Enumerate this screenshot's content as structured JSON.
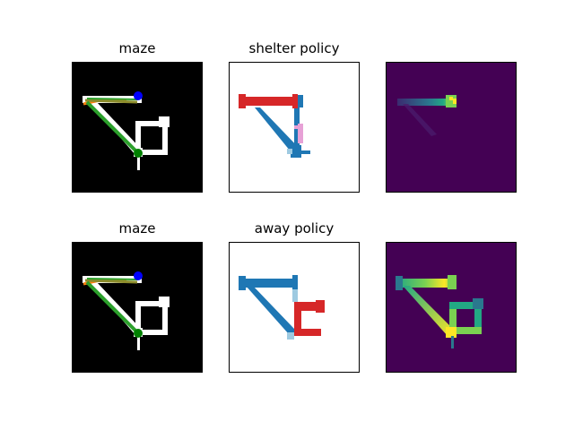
{
  "figure": {
    "rows": [
      {
        "panels": [
          {
            "title": "maze",
            "kind": "maze"
          },
          {
            "title": "shelter policy",
            "kind": "policy-shelter"
          },
          {
            "title": "",
            "kind": "heat-shelter"
          }
        ]
      },
      {
        "panels": [
          {
            "title": "maze",
            "kind": "maze"
          },
          {
            "title": "away policy",
            "kind": "policy-away"
          },
          {
            "title": "",
            "kind": "heat-away"
          }
        ]
      }
    ]
  },
  "colors": {
    "maze_background": "#000000",
    "maze_path": "#ffffff",
    "policy_background": "#ffffff",
    "policy_blue": "#1f77b4",
    "policy_red": "#d62728",
    "policy_pink": "#e7a1d6",
    "policy_lightblue": "#9ecae1",
    "heat_background": "#440154",
    "heat_dark": "#3b2a70",
    "heat_mid": "#2a788e",
    "heat_green": "#22a884",
    "heat_lime": "#7ad151",
    "heat_yellow": "#fde725",
    "start_marker": "#0000ff",
    "goal_marker": "#008000",
    "trajectory_orange": "#ff7f0e",
    "trajectory_green": "#2ca02c",
    "trajectory_olive": "#8c8c2c"
  }
}
